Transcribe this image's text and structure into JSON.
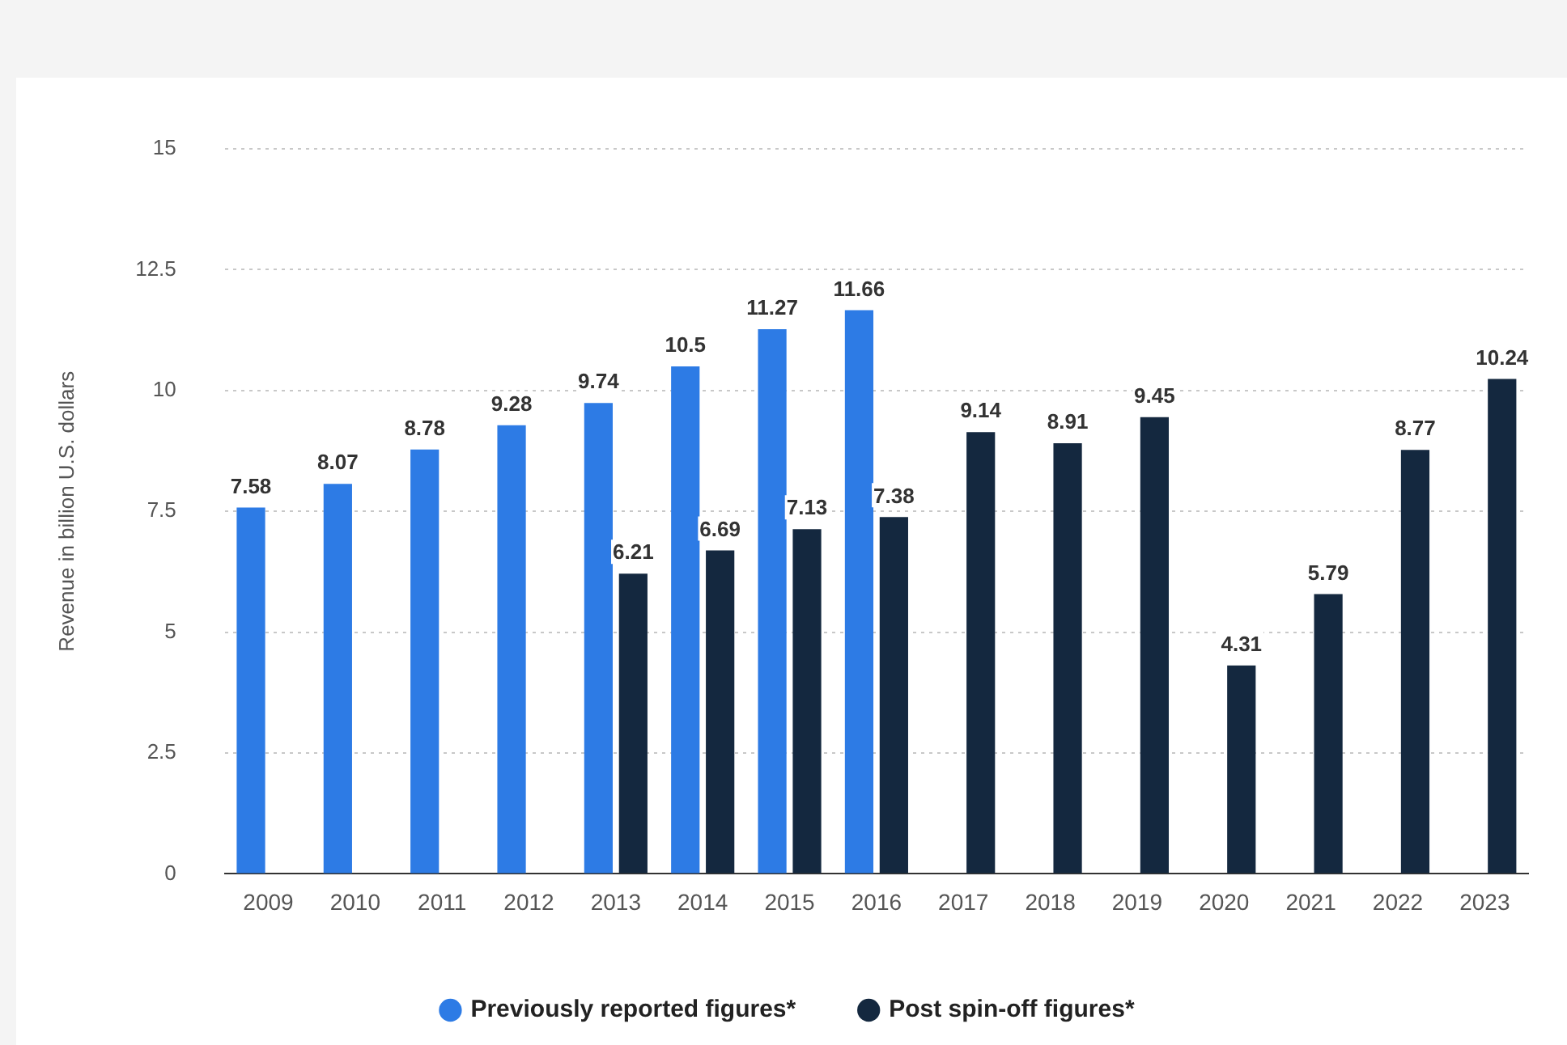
{
  "chart_data": {
    "type": "bar",
    "ylabel": "Revenue in billion U.S. dollars",
    "categories": [
      "2009",
      "2010",
      "2011",
      "2012",
      "2013",
      "2014",
      "2015",
      "2016",
      "2017",
      "2018",
      "2019",
      "2020",
      "2021",
      "2022",
      "2023"
    ],
    "series": [
      {
        "name": "Previously reported figures*",
        "color": "#2d7be5",
        "values": [
          7.58,
          8.07,
          8.78,
          9.28,
          9.74,
          10.5,
          11.27,
          11.66,
          null,
          null,
          null,
          null,
          null,
          null,
          null
        ]
      },
      {
        "name": "Post spin-off figures*",
        "color": "#14283f",
        "values": [
          null,
          null,
          null,
          null,
          6.21,
          6.69,
          7.13,
          7.38,
          9.14,
          8.91,
          9.45,
          4.31,
          5.79,
          8.77,
          10.24
        ]
      }
    ],
    "ylim": [
      0,
      15
    ],
    "yticks": [
      0,
      2.5,
      5,
      7.5,
      10,
      12.5,
      15
    ],
    "grid": "y",
    "legend": "bottom",
    "data_labels": true
  }
}
